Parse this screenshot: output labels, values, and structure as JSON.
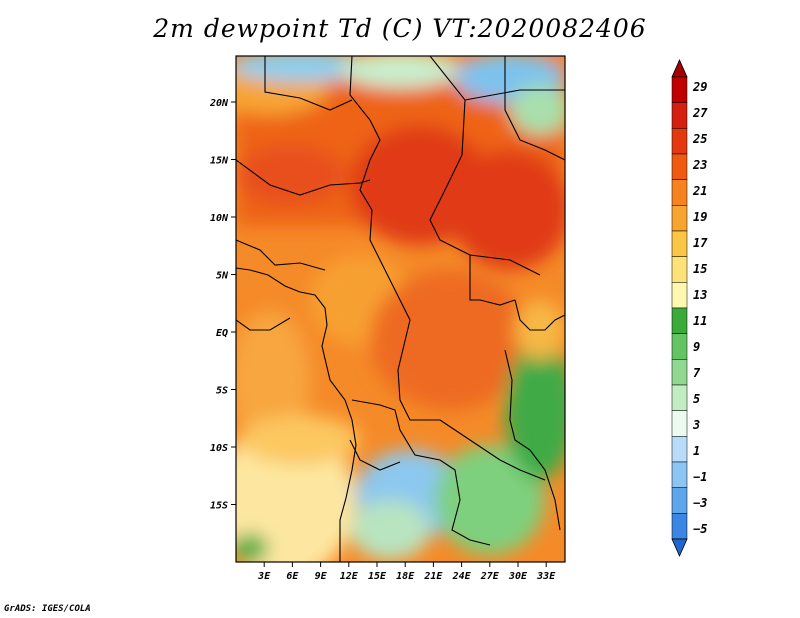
{
  "title": "2m dewpoint Td (C) VT:2020082406",
  "credit": "GrADS: IGES/COLA",
  "map": {
    "variable": "2m dewpoint",
    "units": "C",
    "valid_time": "2020082406",
    "lon_range": [
      0,
      35
    ],
    "lat_range": [
      -20,
      24
    ],
    "lon_ticks": [
      "3E",
      "6E",
      "9E",
      "12E",
      "15E",
      "18E",
      "21E",
      "24E",
      "27E",
      "30E",
      "33E"
    ],
    "lon_tick_values": [
      3,
      6,
      9,
      12,
      15,
      18,
      21,
      24,
      27,
      30,
      33
    ],
    "lat_ticks": [
      "20N",
      "15N",
      "10N",
      "5N",
      "EQ",
      "5S",
      "10S",
      "15S"
    ],
    "lat_tick_values": [
      20,
      15,
      10,
      5,
      0,
      -5,
      -10,
      -15
    ]
  },
  "colorbar": {
    "labels": [
      "29",
      "27",
      "25",
      "23",
      "21",
      "19",
      "17",
      "15",
      "13",
      "11",
      "9",
      "7",
      "5",
      "3",
      "1",
      "−1",
      "−3",
      "−5"
    ],
    "colors": [
      "#a50000",
      "#c00000",
      "#d42010",
      "#e33810",
      "#ee5a10",
      "#f58420",
      "#f7a530",
      "#fbc545",
      "#fde27a",
      "#fef7b0",
      "#3aaa3a",
      "#62c462",
      "#90d890",
      "#c2ecc2",
      "#ecfaf0",
      "#b8dcf8",
      "#8cc4f2",
      "#5ea6ea",
      "#3a86e0",
      "#2066d0"
    ]
  }
}
